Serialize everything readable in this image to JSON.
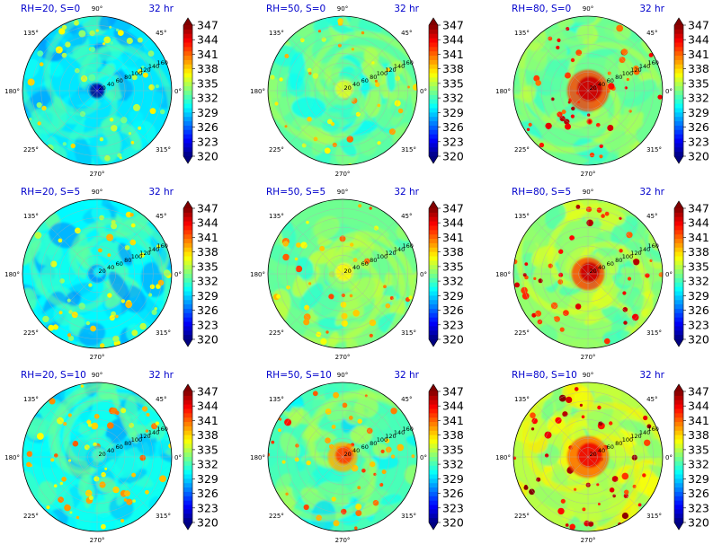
{
  "figure": {
    "time_label": "32 hr",
    "angle_labels": [
      "90°",
      "45°",
      "0°",
      "315°",
      "270°",
      "225°",
      "180°",
      "135°"
    ],
    "radial_labels": [
      "20",
      "40",
      "60",
      "80",
      "100",
      "120",
      "140",
      "160"
    ],
    "colorbar_ticks": [
      "347",
      "344",
      "341",
      "338",
      "335",
      "332",
      "329",
      "326",
      "323",
      "320"
    ]
  },
  "chart_data": [
    {
      "type": "heatmap",
      "title": "RH=20, S=0",
      "subtitle": "32 hr",
      "mean": 329.5,
      "spread": 3,
      "core": 322,
      "coreRadius": 0.1,
      "patchDensity": 0.9,
      "patchCenter": 334
    },
    {
      "type": "heatmap",
      "title": "RH=50, S=0",
      "subtitle": "32 hr",
      "mean": 332.5,
      "spread": 2.5,
      "core": 336,
      "coreRadius": 0.2,
      "patchDensity": 0.7,
      "patchCenter": 337
    },
    {
      "type": "heatmap",
      "title": "RH=80, S=0",
      "subtitle": "32 hr",
      "mean": 333,
      "spread": 2.5,
      "core": 345,
      "coreRadius": 0.28,
      "patchDensity": 0.8,
      "patchCenter": 342
    },
    {
      "type": "heatmap",
      "title": "RH=20, S=5",
      "subtitle": "32 hr",
      "mean": 330,
      "spread": 3,
      "core": 330,
      "coreRadius": 0.12,
      "patchDensity": 0.9,
      "patchCenter": 335
    },
    {
      "type": "heatmap",
      "title": "RH=50, S=5",
      "subtitle": "32 hr",
      "mean": 333,
      "spread": 2.5,
      "core": 337,
      "coreRadius": 0.2,
      "patchDensity": 0.7,
      "patchCenter": 338
    },
    {
      "type": "heatmap",
      "title": "RH=80, S=5",
      "subtitle": "32 hr",
      "mean": 334,
      "spread": 2.5,
      "core": 345,
      "coreRadius": 0.22,
      "patchDensity": 0.7,
      "patchCenter": 342
    },
    {
      "type": "heatmap",
      "title": "RH=20, S=10",
      "subtitle": "32 hr",
      "mean": 330.5,
      "spread": 3,
      "core": 332,
      "coreRadius": 0.15,
      "patchDensity": 1.0,
      "patchCenter": 337
    },
    {
      "type": "heatmap",
      "title": "RH=50, S=10",
      "subtitle": "32 hr",
      "mean": 332,
      "spread": 3,
      "core": 342,
      "coreRadius": 0.2,
      "patchDensity": 0.8,
      "patchCenter": 339
    },
    {
      "type": "heatmap",
      "title": "RH=80, S=10",
      "subtitle": "32 hr",
      "mean": 335,
      "spread": 2.5,
      "core": 344,
      "coreRadius": 0.28,
      "patchDensity": 0.9,
      "patchCenter": 343
    }
  ],
  "colorbar": {
    "min": 320,
    "max": 347,
    "colormap": "jet",
    "extend": "both"
  }
}
